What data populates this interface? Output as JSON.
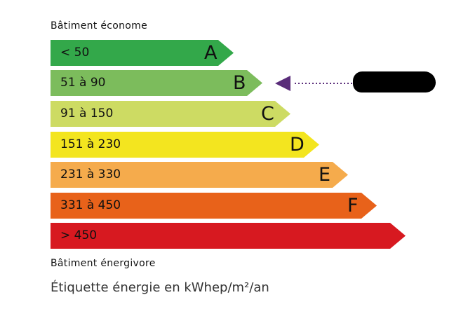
{
  "top_label": "Bâtiment économe",
  "bottom_label": "Bâtiment énergivore",
  "unit_label": "Étiquette énergie en kWhep/m²/an",
  "classes": [
    {
      "range": "< 50",
      "letter": "A",
      "color": "#33a84a"
    },
    {
      "range": "51 à 90",
      "letter": "B",
      "color": "#7cbc5c"
    },
    {
      "range": "91 à 150",
      "letter": "C",
      "color": "#cddb63"
    },
    {
      "range": "151 à 230",
      "letter": "D",
      "color": "#f3e51f"
    },
    {
      "range": "231 à 330",
      "letter": "E",
      "color": "#f5ab4c"
    },
    {
      "range": "331 à 450",
      "letter": "F",
      "color": "#e8621a"
    },
    {
      "range": "> 450",
      "letter": "",
      "color": "#d71920"
    }
  ],
  "indicator": {
    "class": "B",
    "color": "#5a2d7a",
    "value_redacted": true
  }
}
